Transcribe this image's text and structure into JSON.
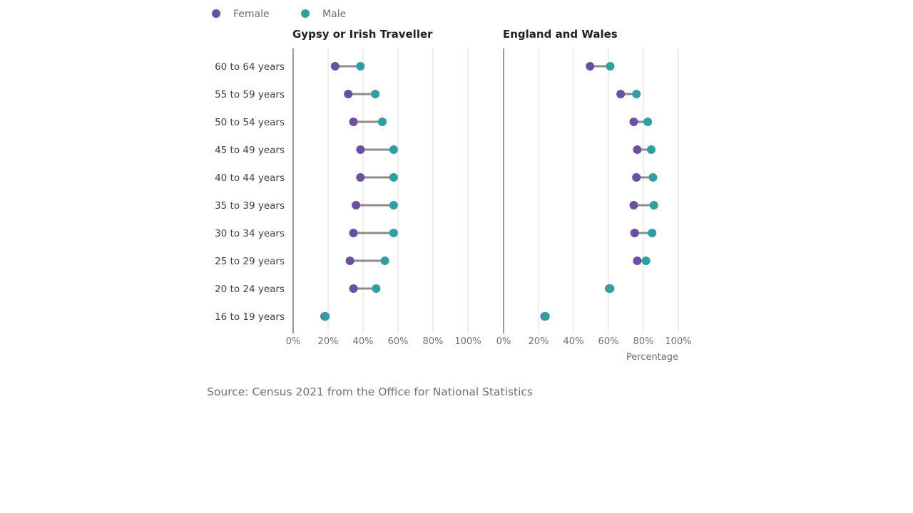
{
  "source": "Source: Census 2021 from the Office for National Statistics",
  "chart_data": {
    "type": "scatter",
    "subtype": "dumbbell",
    "legend": [
      {
        "name": "Female",
        "color": "#6a4fa3"
      },
      {
        "name": "Male",
        "color": "#2e9fa3"
      }
    ],
    "legend_position": "top-left",
    "connector_color": "#8c8c8c",
    "categories": [
      "60 to 64 years",
      "55 to 59 years",
      "50 to 54 years",
      "45 to 49 years",
      "40 to 44 years",
      "35 to 39 years",
      "30 to 34 years",
      "25 to 29 years",
      "20 to 24 years",
      "16 to 19 years"
    ],
    "xlim": [
      0,
      100
    ],
    "xticks": [
      "0%",
      "20%",
      "40%",
      "60%",
      "80%",
      "100%"
    ],
    "xlabel": "Percentage",
    "grid": true,
    "panels": [
      {
        "title": "Gypsy or Irish Traveller",
        "series": [
          {
            "name": "Female",
            "values": [
              24,
              31.5,
              34.5,
              38.5,
              38.5,
              36,
              34.5,
              32.5,
              34.5,
              18
            ]
          },
          {
            "name": "Male",
            "values": [
              38.5,
              47,
              51,
              57.5,
              57.5,
              57.5,
              57.5,
              52.5,
              47.5,
              18.5
            ]
          }
        ]
      },
      {
        "title": "England and Wales",
        "series": [
          {
            "name": "Female",
            "values": [
              49.5,
              67,
              74.5,
              76.5,
              76,
              74.5,
              75,
              76.5,
              60.5,
              23.5
            ]
          },
          {
            "name": "Male",
            "values": [
              61,
              76,
              82.5,
              84.5,
              85.5,
              86,
              85,
              81.5,
              61,
              24
            ]
          }
        ]
      }
    ]
  }
}
